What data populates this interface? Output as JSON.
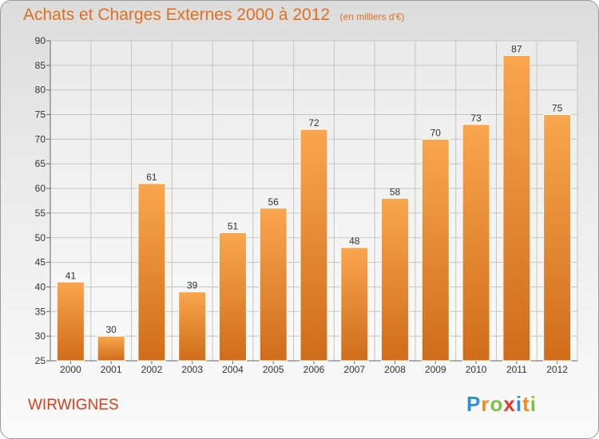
{
  "title": "Achats et Charges Externes 2000 à 2012",
  "unit": "(en milliers d'€)",
  "commune": "WIRWIGNES",
  "logo": {
    "text": "Proxiti",
    "letters": [
      "P",
      "r",
      "o",
      "x",
      "i",
      "t",
      "i"
    ],
    "colors": [
      "#2e8fd6",
      "#f08a1c",
      "#7cc243",
      "#e03a2a",
      "#2e8fd6",
      "#f08a1c",
      "#7cc243"
    ]
  },
  "colors": {
    "accent": "#e0701e",
    "bar_top": "#f9a64e",
    "bar_bottom": "#d06c1a",
    "commune": "#d8401a"
  },
  "chart_data": {
    "type": "bar",
    "title": "Achats et Charges Externes 2000 à 2012",
    "categories": [
      "2000",
      "2001",
      "2002",
      "2003",
      "2004",
      "2005",
      "2006",
      "2007",
      "2008",
      "2009",
      "2010",
      "2011",
      "2012"
    ],
    "values": [
      41,
      30,
      61,
      39,
      51,
      56,
      72,
      48,
      58,
      70,
      73,
      87,
      75
    ],
    "ylim": [
      25,
      90
    ],
    "yticks": [
      25,
      30,
      35,
      40,
      45,
      50,
      55,
      60,
      65,
      70,
      75,
      80,
      85,
      90
    ],
    "grid": true,
    "data_labels": true
  }
}
